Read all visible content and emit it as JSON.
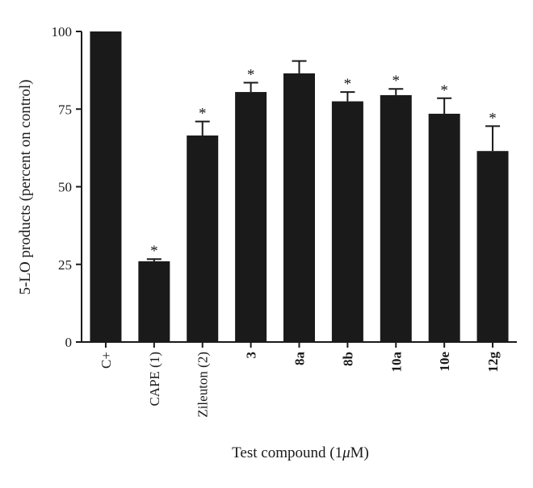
{
  "chart_data": {
    "type": "bar",
    "categories": [
      "C+",
      "CAPE (1)",
      "Zileuton (2)",
      "3",
      "8a",
      "8b",
      "10a",
      "10e",
      "12g"
    ],
    "category_bold": [
      false,
      false,
      false,
      true,
      true,
      true,
      true,
      true,
      true
    ],
    "values": [
      100,
      26,
      66.5,
      80.5,
      86.5,
      77.5,
      79.5,
      73.5,
      61.5
    ],
    "errors": [
      0,
      0.7,
      4.5,
      3,
      4,
      3,
      2,
      5,
      8
    ],
    "significant": [
      false,
      true,
      true,
      true,
      false,
      true,
      true,
      true,
      true
    ],
    "significance_marker": "*",
    "xlabel": "Test compound (1",
    "xlabel_mu": "μ",
    "xlabel_unit": "M)",
    "ylabel": "5-LO products (percent on control)",
    "ylim": [
      0,
      100
    ],
    "yticks": [
      0,
      25,
      50,
      75,
      100
    ],
    "bar_color": "#1a1a1a",
    "grid": false
  }
}
